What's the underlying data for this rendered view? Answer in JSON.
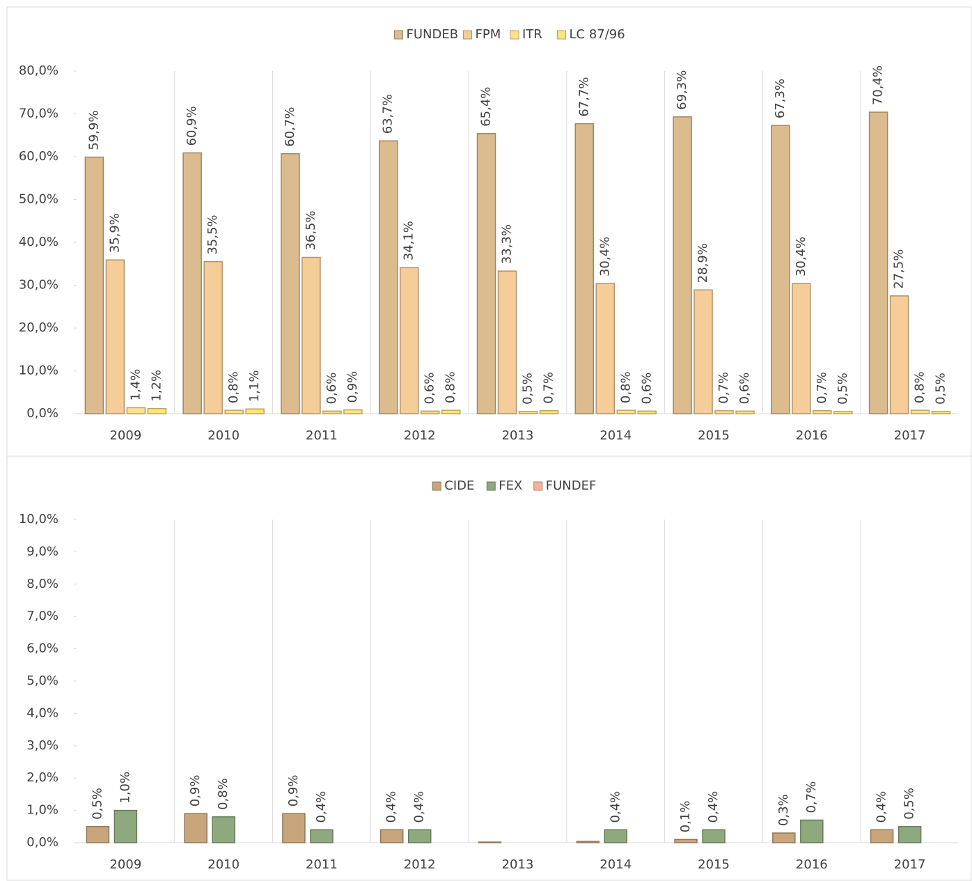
{
  "chart_data": [
    {
      "type": "bar",
      "categories": [
        "2009",
        "2010",
        "2011",
        "2012",
        "2013",
        "2014",
        "2015",
        "2016",
        "2017"
      ],
      "series": [
        {
          "name": "FUNDEB",
          "color": "#dcbb8e",
          "values": [
            59.9,
            60.9,
            60.7,
            63.7,
            65.4,
            67.7,
            69.3,
            67.3,
            70.4
          ],
          "value_labels": [
            "59,9%",
            "60,9%",
            "60,7%",
            "63,7%",
            "65,4%",
            "67,7%",
            "69,3%",
            "67,3%",
            "70,4%"
          ]
        },
        {
          "name": "FPM",
          "color": "#f5cd98",
          "values": [
            35.9,
            35.5,
            36.5,
            34.1,
            33.3,
            30.4,
            28.9,
            30.4,
            27.5
          ],
          "value_labels": [
            "35,9%",
            "35,5%",
            "36,5%",
            "34,1%",
            "33,3%",
            "30,4%",
            "28,9%",
            "30,4%",
            "27,5%"
          ]
        },
        {
          "name": "ITR",
          "color": "#ffdf8c",
          "values": [
            1.4,
            0.8,
            0.6,
            0.6,
            0.5,
            0.8,
            0.7,
            0.7,
            0.8
          ],
          "value_labels": [
            "1,4%",
            "0,8%",
            "0,6%",
            "0,6%",
            "0,5%",
            "0,8%",
            "0,7%",
            "0,7%",
            "0,8%"
          ]
        },
        {
          "name": "LC 87/96",
          "color": "#ffe57a",
          "values": [
            1.2,
            1.1,
            0.9,
            0.8,
            0.7,
            0.6,
            0.6,
            0.5,
            0.5
          ],
          "value_labels": [
            "1,2%",
            "1,1%",
            "0,9%",
            "0,8%",
            "0,7%",
            "0,6%",
            "0,6%",
            "0,5%",
            "0,5%"
          ]
        }
      ],
      "ylim": [
        0,
        80
      ],
      "yticks": [
        {
          "value": 0,
          "label": "0,0%"
        },
        {
          "value": 10,
          "label": "10,0%"
        },
        {
          "value": 20,
          "label": "20,0%"
        },
        {
          "value": 30,
          "label": "30,0%"
        },
        {
          "value": 40,
          "label": "40,0%"
        },
        {
          "value": 50,
          "label": "50,0%"
        },
        {
          "value": 60,
          "label": "60,0%"
        },
        {
          "value": 70,
          "label": "70,0%"
        },
        {
          "value": 80,
          "label": "80,0%"
        }
      ],
      "legend": "top"
    },
    {
      "type": "bar",
      "categories": [
        "2009",
        "2010",
        "2011",
        "2012",
        "2013",
        "2014",
        "2015",
        "2016",
        "2017"
      ],
      "series": [
        {
          "name": "CIDE",
          "color": "#c9a57b",
          "values": [
            0.5,
            0.9,
            0.9,
            0.4,
            0.02,
            0.04,
            0.1,
            0.3,
            0.4
          ],
          "value_labels": [
            "0,5%",
            "0,9%",
            "0,9%",
            "0,4%",
            null,
            null,
            "0,1%",
            "0,3%",
            "0,4%"
          ]
        },
        {
          "name": "FEX",
          "color": "#8fa97f",
          "values": [
            1.0,
            0.8,
            0.4,
            0.4,
            null,
            0.4,
            0.4,
            0.7,
            0.5
          ],
          "value_labels": [
            "1,0%",
            "0,8%",
            "0,4%",
            "0,4%",
            null,
            "0,4%",
            "0,4%",
            "0,7%",
            "0,5%"
          ]
        },
        {
          "name": "FUNDEF",
          "color": "#f4b49a",
          "values": [
            null,
            null,
            null,
            null,
            null,
            null,
            null,
            null,
            null
          ]
        }
      ],
      "ylim": [
        0,
        10
      ],
      "yticks": [
        {
          "value": 0,
          "label": "0,0%"
        },
        {
          "value": 1,
          "label": "1,0%"
        },
        {
          "value": 2,
          "label": "2,0%"
        },
        {
          "value": 3,
          "label": "3,0%"
        },
        {
          "value": 4,
          "label": "4,0%"
        },
        {
          "value": 5,
          "label": "5,0%"
        },
        {
          "value": 6,
          "label": "6,0%"
        },
        {
          "value": 7,
          "label": "7,0%"
        },
        {
          "value": 8,
          "label": "8,0%"
        },
        {
          "value": 9,
          "label": "9,0%"
        },
        {
          "value": 10,
          "label": "10,0%"
        }
      ],
      "legend": "top"
    }
  ]
}
